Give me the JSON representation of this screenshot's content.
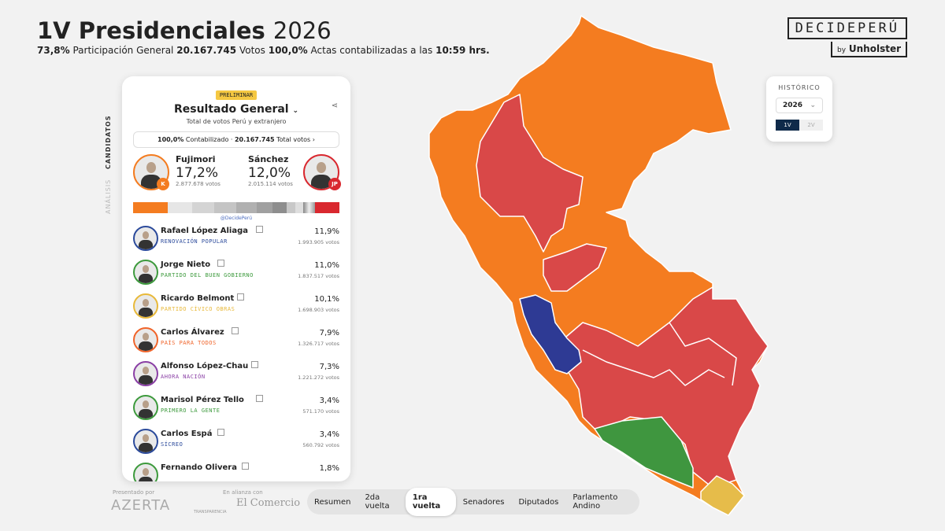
{
  "header": {
    "title": "1V Presidenciales",
    "year": "2026",
    "stats": {
      "participation": "73,8%",
      "participation_label": "Participación General",
      "votes": "20.167.745",
      "votes_label": "Votos",
      "actas": "100,0%",
      "actas_label": "Actas contabilizadas a las",
      "time": "10:59 hrs."
    }
  },
  "brand": {
    "name": "DECIDEPERÚ",
    "by": "by",
    "company": "Unholster"
  },
  "panel": {
    "badge": "PRELIMINAR",
    "title": "Resultado General",
    "subtitle": "Total de votos Perú y extranjero",
    "counted": "100,0%",
    "counted_label": "Contabilizado ·",
    "total_votes": "20.167.745",
    "total_votes_label": "Total votos",
    "side_tabs": [
      "CANDIDATOS",
      "ANÁLISIS"
    ],
    "leaders": [
      {
        "name": "Fujimori",
        "pct": "17,2%",
        "votes": "2.877.678 votos",
        "badge": "K",
        "color": "#f47c20"
      },
      {
        "name": "Sánchez",
        "pct": "12,0%",
        "votes": "2.015.114 votos",
        "badge": "JP",
        "color": "#d9282f"
      }
    ],
    "credit": "@DecidePerú",
    "candidates": [
      {
        "name": "Rafael López Aliaga",
        "party": "RENOVACIÓN POPULAR",
        "pct": "11,9%",
        "votes": "1.993.905 votos",
        "color": "#2b4a9b"
      },
      {
        "name": "Jorge Nieto",
        "party": "PARTIDO DEL BUEN GOBIERNO",
        "pct": "11,0%",
        "votes": "1.837.517 votos",
        "color": "#3d9a3d"
      },
      {
        "name": "Ricardo Belmont",
        "party": "PARTIDO CÍVICO OBRAS",
        "pct": "10,1%",
        "votes": "1.698.903 votos",
        "color": "#e8b93a"
      },
      {
        "name": "Carlos Álvarez",
        "party": "PAÍS PARA TODOS",
        "pct": "7,9%",
        "votes": "1.326.717 votos",
        "color": "#f0642a"
      },
      {
        "name": "Alfonso López-Chau",
        "party": "AHORA NACIÓN",
        "pct": "7,3%",
        "votes": "1.221.272 votos",
        "color": "#8a3fa5"
      },
      {
        "name": "Marisol Pérez Tello",
        "party": "PRIMERO LA GENTE",
        "pct": "3,4%",
        "votes": "571.170 votos",
        "color": "#3d9a3d"
      },
      {
        "name": "Carlos Espá",
        "party": "SÍCREO",
        "pct": "3,4%",
        "votes": "560.792 votos",
        "color": "#2b4a9b"
      },
      {
        "name": "Fernando Olivera",
        "party": "",
        "pct": "1,8%",
        "votes": "",
        "color": "#3d9a3d"
      }
    ]
  },
  "historico": {
    "title": "HISTÓRICO",
    "year": "2026",
    "rounds": [
      "1V",
      "2V"
    ]
  },
  "nav": {
    "tabs": [
      "Resumen",
      "2da vuelta",
      "1ra vuelta",
      "Senadores",
      "Diputados",
      "Parlamento Andino"
    ],
    "active": 2
  },
  "footer": {
    "presented": "Presentado por",
    "sponsor": "AZERTA",
    "alliance": "En alianza con",
    "partner1": "TRANSPARENCIA",
    "partner2": "El Comercio"
  }
}
